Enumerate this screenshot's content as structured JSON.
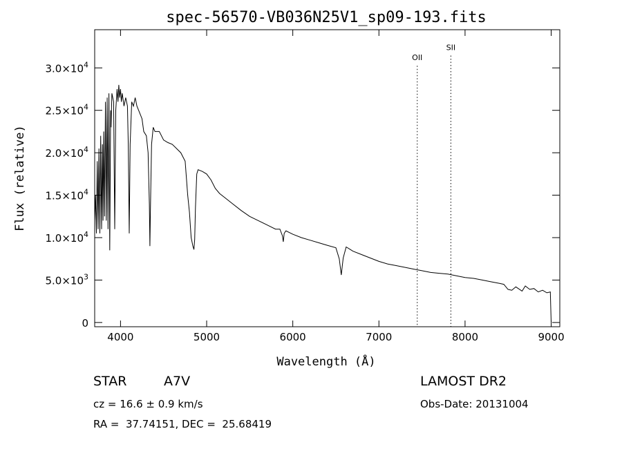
{
  "chart_data": {
    "type": "line",
    "title": "spec-56570-VB036N25V1_sp09-193.fits",
    "xlabel": "Wavelength (Å)",
    "ylabel": "Flux (relative)",
    "xlim": [
      3700,
      9100
    ],
    "ylim": [
      -500,
      34500
    ],
    "x_ticks": [
      4000,
      5000,
      6000,
      7000,
      8000,
      9000
    ],
    "x_tick_labels": [
      "4000",
      "5000",
      "6000",
      "7000",
      "8000",
      "9000"
    ],
    "y_ticks": [
      0,
      5000,
      10000,
      15000,
      20000,
      25000,
      30000
    ],
    "y_tick_labels": [
      {
        "mant": "0",
        "exp": ""
      },
      {
        "mant": "5.0×10",
        "exp": "3"
      },
      {
        "mant": "1.0×10",
        "exp": "4"
      },
      {
        "mant": "1.5×10",
        "exp": "4"
      },
      {
        "mant": "2.0×10",
        "exp": "4"
      },
      {
        "mant": "2.5×10",
        "exp": "4"
      },
      {
        "mant": "3.0×10",
        "exp": "4"
      }
    ],
    "grid": false,
    "series": [
      {
        "x": [
          3700,
          3710,
          3720,
          3730,
          3740,
          3750,
          3760,
          3770,
          3780,
          3790,
          3797,
          3805,
          3815,
          3825,
          3835,
          3845,
          3855,
          3865,
          3875,
          3885,
          3890,
          3900,
          3920,
          3933,
          3945,
          3960,
          3970,
          3980,
          3990,
          4000,
          4010,
          4020,
          4040,
          4060,
          4080,
          4090,
          4101,
          4112,
          4130,
          4150,
          4170,
          4190,
          4210,
          4230,
          4250,
          4270,
          4300,
          4320,
          4335,
          4341,
          4347,
          4360,
          4380,
          4400,
          4450,
          4500,
          4550,
          4600,
          4650,
          4700,
          4750,
          4780,
          4800,
          4820,
          4840,
          4852,
          4861,
          4870,
          4885,
          4900,
          4950,
          5000,
          5050,
          5100,
          5150,
          5200,
          5300,
          5400,
          5500,
          5600,
          5700,
          5800,
          5850,
          5880,
          5890,
          5900,
          5920,
          6000,
          6100,
          6200,
          6300,
          6400,
          6500,
          6540,
          6563,
          6585,
          6620,
          6700,
          6800,
          6900,
          7000,
          7100,
          7200,
          7300,
          7400,
          7500,
          7600,
          7700,
          7800,
          7900,
          8000,
          8100,
          8200,
          8300,
          8400,
          8450,
          8498,
          8542,
          8590,
          8662,
          8700,
          8750,
          8800,
          8850,
          8900,
          8950,
          8990,
          9000
        ],
        "y": [
          12000,
          15000,
          10500,
          19000,
          11000,
          20500,
          10500,
          22000,
          11000,
          21000,
          12000,
          22500,
          12500,
          26000,
          12000,
          26500,
          11000,
          27000,
          8500,
          25000,
          23000,
          27000,
          26000,
          11000,
          25000,
          27500,
          26000,
          28000,
          26500,
          27500,
          26000,
          27000,
          25500,
          26500,
          25500,
          21000,
          10500,
          21000,
          26000,
          25500,
          26500,
          25500,
          25000,
          24500,
          24000,
          22500,
          22000,
          20000,
          14000,
          9000,
          13000,
          21000,
          23000,
          22500,
          22500,
          21500,
          21200,
          21000,
          20500,
          20000,
          19000,
          15000,
          13000,
          10000,
          9000,
          8600,
          9800,
          13500,
          17500,
          18000,
          17800,
          17500,
          16800,
          15800,
          15200,
          14800,
          14000,
          13200,
          12500,
          12000,
          11500,
          11000,
          11000,
          10200,
          9500,
          10500,
          10800,
          10400,
          10000,
          9700,
          9400,
          9100,
          8800,
          7500,
          5600,
          7600,
          8900,
          8400,
          8000,
          7600,
          7200,
          6900,
          6700,
          6500,
          6300,
          6100,
          5900,
          5800,
          5700,
          5500,
          5300,
          5200,
          5000,
          4800,
          4600,
          4500,
          3900,
          3800,
          4200,
          3700,
          4300,
          3900,
          4000,
          3600,
          3800,
          3500,
          3600,
          0
        ]
      }
    ],
    "annotations": [
      {
        "label": "OII",
        "x": 7445,
        "label_y": 30900
      },
      {
        "label": "SII",
        "x": 7835,
        "label_y": 32100
      }
    ]
  },
  "footer": {
    "object_type": "STAR",
    "subclass": "A7V",
    "survey": "LAMOST DR2",
    "cz": "cz = 16.6 ± 0.9 km/s",
    "obs_date": "Obs-Date: 20131004",
    "coords": "RA =  37.74151, DEC =  25.68419"
  }
}
